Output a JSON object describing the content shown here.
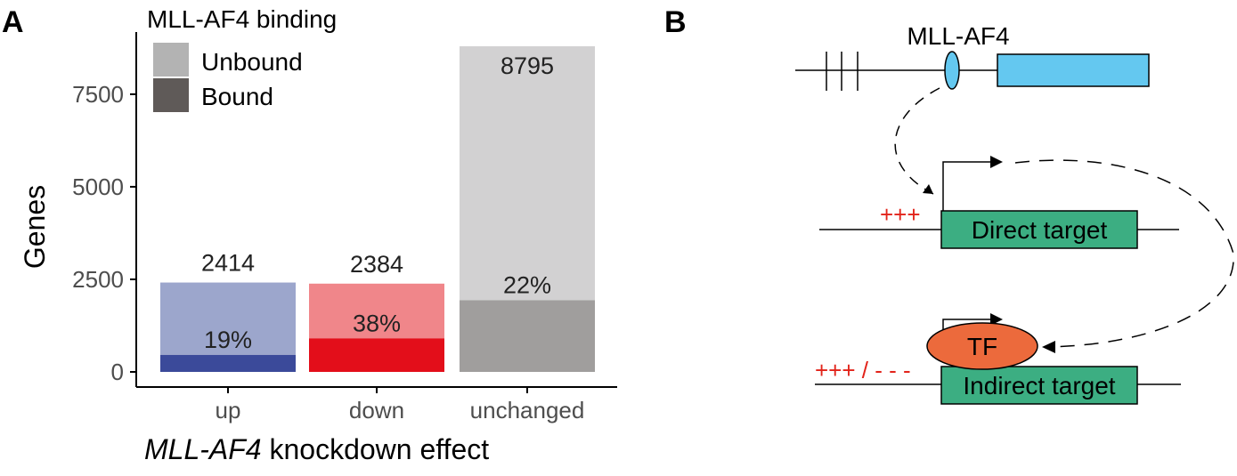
{
  "panels": {
    "a": "A",
    "b": "B"
  },
  "chart_data": {
    "type": "bar",
    "stacked": true,
    "categories": [
      "up",
      "down",
      "unchanged"
    ],
    "totals": [
      2414,
      2384,
      8795
    ],
    "bound": [
      459,
      906,
      1935
    ],
    "bound_percent_labels": [
      "19%",
      "38%",
      "22%"
    ],
    "total_labels": [
      "2414",
      "2384",
      "8795"
    ],
    "series": [
      {
        "name": "Unbound",
        "values": [
          1955,
          1478,
          6860
        ]
      },
      {
        "name": "Bound",
        "values": [
          459,
          906,
          1935
        ]
      }
    ],
    "ylabel": "Genes",
    "xlabel": {
      "italic": "MLL-AF4",
      "rest": " knockdown effect"
    },
    "ylim": [
      0,
      8795
    ],
    "yticks": [
      0,
      2500,
      5000,
      7500
    ],
    "ytick_labels": [
      "0",
      "2500",
      "5000",
      "7500"
    ],
    "legend": {
      "title": "MLL-AF4 binding",
      "placement": "top-left",
      "entries": [
        {
          "label": "Unbound",
          "color": "#b3b3b3"
        },
        {
          "label": "Bound",
          "color": "#5f5a58"
        }
      ]
    },
    "colors": {
      "up": {
        "unbound": "#9ca6cc",
        "bound": "#3b4a9a"
      },
      "down": {
        "unbound": "#f0868a",
        "bound": "#e30e1a"
      },
      "unchanged": {
        "unbound": "#d2d1d2",
        "bound": "#a09e9d"
      }
    }
  },
  "diagram": {
    "protein_label": "MLL-AF4",
    "direct_target": "Direct target",
    "indirect_target": "Indirect target",
    "tf": "TF",
    "direct_marks": "+++",
    "indirect_marks": "+++ / - - -",
    "colors": {
      "gene_box": "#64c8f0",
      "target_box": "#3cae82",
      "tf": "#ec6a3c",
      "marks": "#e2231a"
    }
  }
}
